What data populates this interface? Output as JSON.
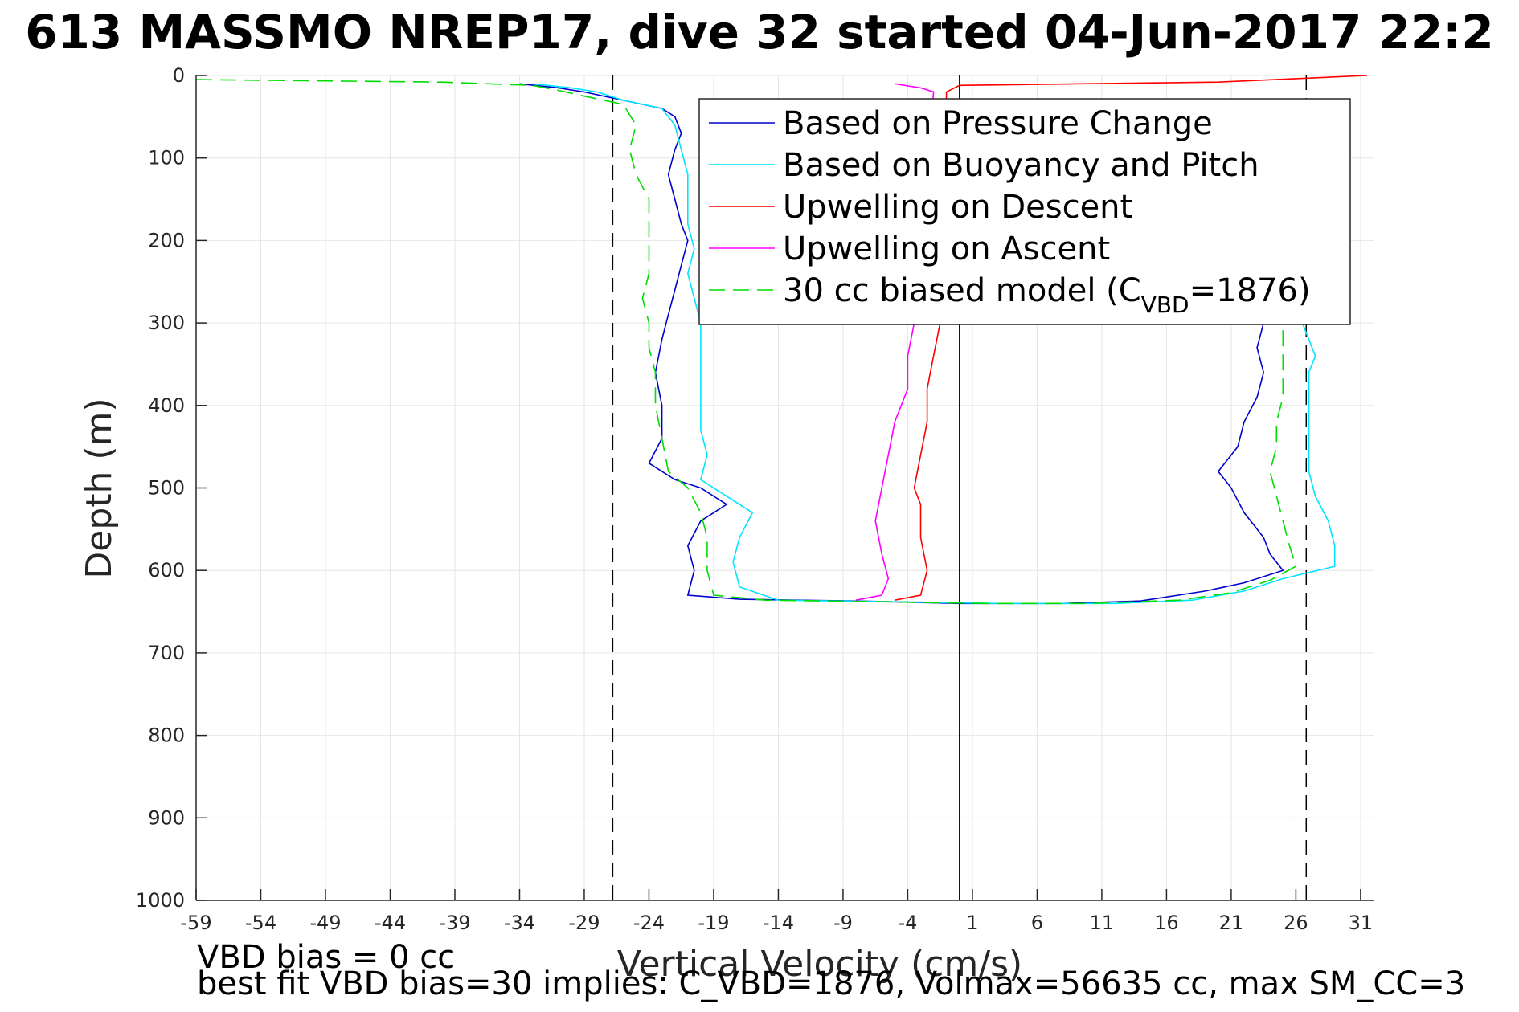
{
  "chart_data": {
    "type": "line",
    "title": "613 MASSMO NREP17, dive 32 started 04-Jun-2017 22:2",
    "xlabel": "Vertical Velocity (cm/s)",
    "ylabel": "Depth (m)",
    "xlim": [
      -59,
      32
    ],
    "ylim": [
      0,
      1000
    ],
    "y_reversed": true,
    "grid": true,
    "legend_position": "top-right",
    "xticks": [
      -59,
      -54,
      -49,
      -44,
      -39,
      -34,
      -29,
      -24,
      -19,
      -14,
      -9,
      -4,
      1,
      6,
      11,
      16,
      21,
      26,
      31
    ],
    "yticks": [
      0,
      100,
      200,
      300,
      400,
      500,
      600,
      700,
      800,
      900,
      1000
    ],
    "reference_lines": [
      {
        "x": -26.8,
        "style": "dashed",
        "color": "#000000"
      },
      {
        "x": 0,
        "style": "solid",
        "color": "#000000"
      },
      {
        "x": 26.8,
        "style": "dashed",
        "color": "#000000"
      }
    ],
    "series": [
      {
        "name": "Based on Pressure Change",
        "color": "#0000cc",
        "points": [
          [
            -34,
            10
          ],
          [
            -31,
            15
          ],
          [
            -29,
            20
          ],
          [
            -26,
            30
          ],
          [
            -23,
            40
          ],
          [
            -22,
            50
          ],
          [
            -21.5,
            70
          ],
          [
            -22,
            90
          ],
          [
            -22.5,
            120
          ],
          [
            -22,
            150
          ],
          [
            -21.5,
            180
          ],
          [
            -21,
            200
          ],
          [
            -21.5,
            230
          ],
          [
            -22,
            260
          ],
          [
            -22.5,
            290
          ],
          [
            -23,
            320
          ],
          [
            -23.5,
            360
          ],
          [
            -23,
            400
          ],
          [
            -23,
            440
          ],
          [
            -24,
            470
          ],
          [
            -22,
            490
          ],
          [
            -20,
            500
          ],
          [
            -18,
            520
          ],
          [
            -20,
            540
          ],
          [
            -21,
            570
          ],
          [
            -20.5,
            600
          ],
          [
            -21,
            630
          ],
          [
            -17,
            635
          ],
          [
            -8,
            637
          ],
          [
            0,
            640
          ],
          [
            8,
            640
          ],
          [
            14,
            637
          ],
          [
            19,
            625
          ],
          [
            22,
            615
          ],
          [
            25,
            600
          ],
          [
            24,
            580
          ],
          [
            23.5,
            560
          ],
          [
            22,
            530
          ],
          [
            21,
            500
          ],
          [
            20,
            480
          ],
          [
            21.5,
            450
          ],
          [
            22,
            420
          ],
          [
            23,
            390
          ],
          [
            23.5,
            360
          ],
          [
            23,
            330
          ],
          [
            23.5,
            300
          ]
        ]
      },
      {
        "name": "Based on Buoyancy and Pitch",
        "color": "#00e5ff",
        "points": [
          [
            -33,
            10
          ],
          [
            -30,
            15
          ],
          [
            -28,
            20
          ],
          [
            -26,
            30
          ],
          [
            -23,
            40
          ],
          [
            -22,
            60
          ],
          [
            -21.5,
            90
          ],
          [
            -21,
            120
          ],
          [
            -21,
            150
          ],
          [
            -21,
            180
          ],
          [
            -20.5,
            210
          ],
          [
            -21,
            240
          ],
          [
            -20.5,
            270
          ],
          [
            -20,
            300
          ],
          [
            -20,
            330
          ],
          [
            -20,
            360
          ],
          [
            -20,
            400
          ],
          [
            -20,
            430
          ],
          [
            -19.5,
            460
          ],
          [
            -20,
            490
          ],
          [
            -18,
            510
          ],
          [
            -16,
            530
          ],
          [
            -17,
            560
          ],
          [
            -17.5,
            590
          ],
          [
            -17,
            620
          ],
          [
            -14,
            636
          ],
          [
            -5,
            638
          ],
          [
            3,
            640
          ],
          [
            12,
            640
          ],
          [
            18,
            636
          ],
          [
            22,
            625
          ],
          [
            25,
            610
          ],
          [
            29,
            595
          ],
          [
            29,
            570
          ],
          [
            28.5,
            540
          ],
          [
            27.5,
            510
          ],
          [
            27,
            480
          ],
          [
            27,
            450
          ],
          [
            27,
            420
          ],
          [
            27,
            390
          ],
          [
            27,
            360
          ],
          [
            27.5,
            340
          ],
          [
            27,
            320
          ],
          [
            26.5,
            300
          ]
        ]
      },
      {
        "name": "Upwelling on Descent",
        "color": "#ff0000",
        "points": [
          [
            31.5,
            0
          ],
          [
            20,
            8
          ],
          [
            0,
            12
          ],
          [
            -1,
            20
          ],
          [
            -1.5,
            300
          ],
          [
            -2,
            340
          ],
          [
            -2.5,
            380
          ],
          [
            -2.5,
            420
          ],
          [
            -3,
            460
          ],
          [
            -3.5,
            500
          ],
          [
            -3,
            520
          ],
          [
            -3,
            560
          ],
          [
            -2.5,
            600
          ],
          [
            -3,
            630
          ],
          [
            -5,
            636
          ]
        ]
      },
      {
        "name": "Upwelling on Ascent",
        "color": "#ff00ff",
        "points": [
          [
            -5,
            10
          ],
          [
            -3,
            15
          ],
          [
            -2,
            20
          ],
          [
            -3.5,
            300
          ],
          [
            -4,
            340
          ],
          [
            -4,
            380
          ],
          [
            -5,
            420
          ],
          [
            -5.5,
            460
          ],
          [
            -6,
            500
          ],
          [
            -6.5,
            540
          ],
          [
            -6,
            580
          ],
          [
            -5.5,
            610
          ],
          [
            -6,
            630
          ],
          [
            -8,
            636
          ]
        ]
      },
      {
        "name": "30 cc biased model (C_VBD=1876)",
        "color": "#00dd00",
        "style": "dashed",
        "points": [
          [
            -59,
            5
          ],
          [
            -40,
            8
          ],
          [
            -33,
            12
          ],
          [
            -31,
            18
          ],
          [
            -29,
            25
          ],
          [
            -26,
            35
          ],
          [
            -25,
            60
          ],
          [
            -25.5,
            90
          ],
          [
            -25,
            120
          ],
          [
            -24,
            150
          ],
          [
            -24,
            180
          ],
          [
            -24,
            210
          ],
          [
            -24,
            240
          ],
          [
            -24.5,
            270
          ],
          [
            -24,
            300
          ],
          [
            -24,
            330
          ],
          [
            -23.5,
            360
          ],
          [
            -23.5,
            400
          ],
          [
            -23,
            440
          ],
          [
            -22.5,
            480
          ],
          [
            -21,
            500
          ],
          [
            -20,
            530
          ],
          [
            -19.5,
            560
          ],
          [
            -19.5,
            600
          ],
          [
            -19,
            630
          ],
          [
            -15,
            636
          ],
          [
            -6,
            638
          ],
          [
            2,
            640
          ],
          [
            10,
            640
          ],
          [
            17,
            636
          ],
          [
            21,
            627
          ],
          [
            24,
            612
          ],
          [
            26,
            595
          ],
          [
            25.5,
            570
          ],
          [
            25,
            540
          ],
          [
            24.5,
            510
          ],
          [
            24,
            480
          ],
          [
            24.5,
            450
          ],
          [
            24.5,
            420
          ],
          [
            25,
            390
          ],
          [
            25,
            360
          ],
          [
            25,
            330
          ],
          [
            25,
            300
          ]
        ]
      }
    ],
    "legend": [
      {
        "label": "Based on Pressure Change"
      },
      {
        "label": "Based on Buoyancy and Pitch"
      },
      {
        "label": "Upwelling on Descent"
      },
      {
        "label": "Upwelling on Ascent"
      },
      {
        "label_main": "30 cc biased model (C",
        "label_sub": "VBD",
        "label_end": "=1876)"
      }
    ],
    "annotations": [
      "VBD bias = 0 cc",
      "best fit VBD bias=30 implies: C_VBD=1876, Volmax=56635 cc, max SM_CC=3"
    ]
  }
}
